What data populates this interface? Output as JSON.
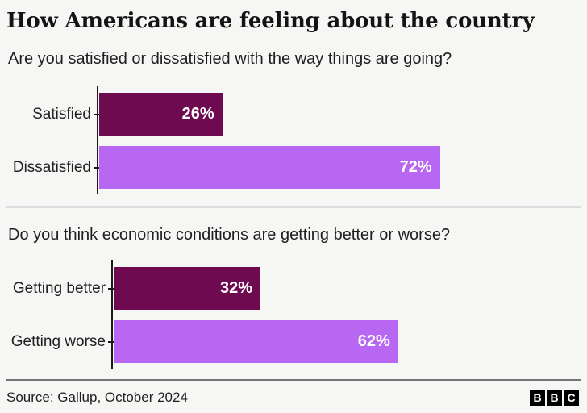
{
  "title": "How Americans are feeling about the country",
  "colors": {
    "background": "#f6f6f5",
    "dark_bar": "#6e0a50",
    "light_bar": "#b767f2",
    "axis": "#1a1a1a",
    "value_text": "#ffffff",
    "divider_light": "#dcdcdc",
    "divider_dark": "#757575"
  },
  "chart_data": [
    {
      "type": "bar",
      "orientation": "horizontal",
      "title": "Are you satisfied or dissatisfied with the way things are going?",
      "categories": [
        "Satisfied",
        "Dissatisfied"
      ],
      "values": [
        26,
        72
      ],
      "value_labels": [
        "26%",
        "72%"
      ],
      "bar_colors": [
        "#6e0a50",
        "#b767f2"
      ],
      "xlim": [
        0,
        100
      ],
      "unit": "percent",
      "grid": "off",
      "legend": "none",
      "value_label_position": "inside-end"
    },
    {
      "type": "bar",
      "orientation": "horizontal",
      "title": "Do you think economic conditions are getting better or worse?",
      "categories": [
        "Getting better",
        "Getting worse"
      ],
      "values": [
        32,
        62
      ],
      "value_labels": [
        "32%",
        "62%"
      ],
      "bar_colors": [
        "#6e0a50",
        "#b767f2"
      ],
      "xlim": [
        0,
        100
      ],
      "unit": "percent",
      "grid": "off",
      "legend": "none",
      "value_label_position": "inside-end"
    }
  ],
  "footer": {
    "source": "Source: Gallup, October 2024",
    "logo_letters": [
      "B",
      "B",
      "C"
    ]
  }
}
